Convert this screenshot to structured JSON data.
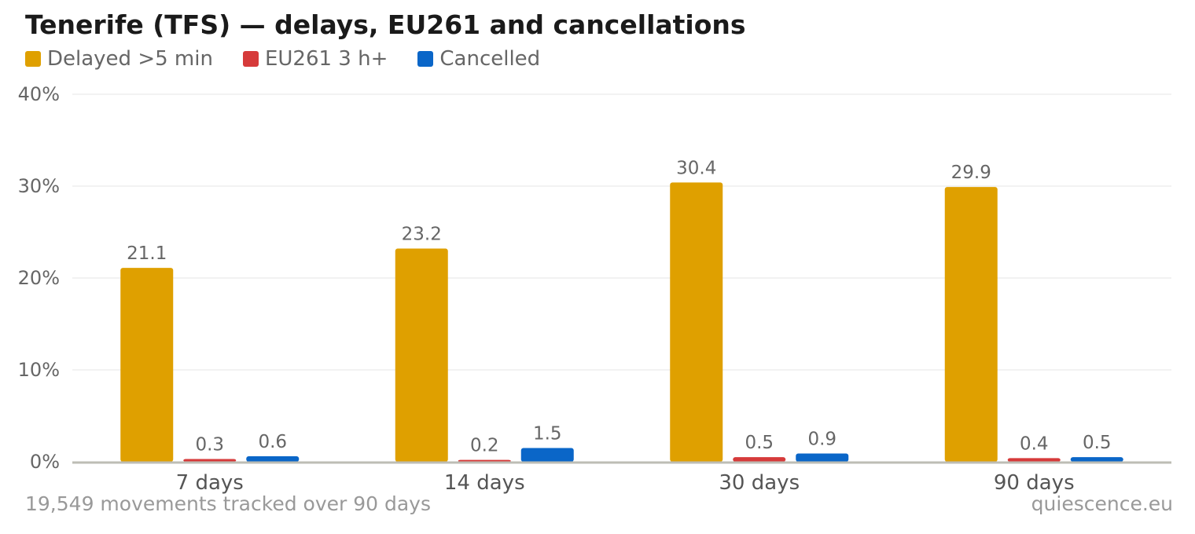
{
  "chart_data": {
    "type": "bar",
    "title": "Tenerife (TFS) — delays, EU261 and cancellations",
    "categories": [
      "7 days",
      "14 days",
      "30 days",
      "90 days"
    ],
    "series": [
      {
        "name": "Delayed >5 min",
        "color": "#dfa000",
        "values": [
          21.1,
          23.2,
          30.4,
          29.9
        ]
      },
      {
        "name": "EU261 3 h+",
        "color": "#d63a3a",
        "values": [
          0.3,
          0.2,
          0.5,
          0.4
        ]
      },
      {
        "name": "Cancelled",
        "color": "#0a66c8",
        "values": [
          0.6,
          1.5,
          0.9,
          0.5
        ]
      }
    ],
    "ylim": [
      0,
      40
    ],
    "yticks": [
      0,
      10,
      20,
      30,
      40
    ],
    "ytick_suffix": "%",
    "grid": true,
    "legend_position": "top-left"
  },
  "footer": {
    "left": "19,549 movements tracked over 90 days",
    "right": "quiescence.eu"
  }
}
